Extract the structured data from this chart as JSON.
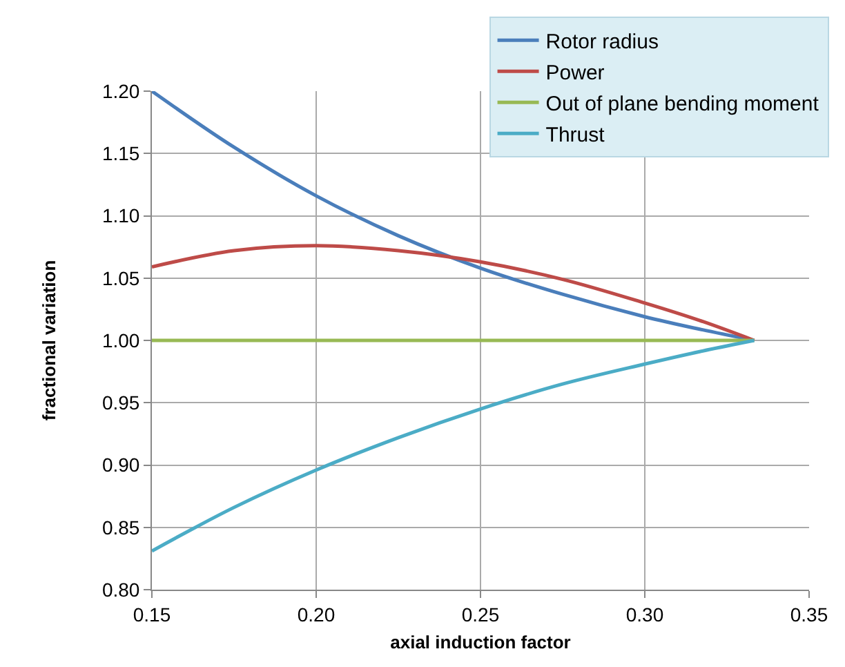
{
  "chart_data": {
    "type": "line",
    "xlabel": "axial induction factor",
    "ylabel": "fractional variation",
    "x": [
      0.15,
      0.175,
      0.2,
      0.225,
      0.25,
      0.275,
      0.3,
      0.3167,
      0.3333
    ],
    "series": [
      {
        "name": "Rotor radius",
        "color": "#4a7ebb",
        "values": [
          1.2,
          1.155,
          1.116,
          1.084,
          1.058,
          1.037,
          1.019,
          1.009,
          1.0
        ]
      },
      {
        "name": "Power",
        "color": "#be4b48",
        "values": [
          1.059,
          1.072,
          1.076,
          1.072,
          1.063,
          1.049,
          1.03,
          1.016,
          1.0
        ]
      },
      {
        "name": "Out of plane bending moment",
        "color": "#98b954",
        "values": [
          1.0,
          1.0,
          1.0,
          1.0,
          1.0,
          1.0,
          1.0,
          1.0,
          1.0
        ]
      },
      {
        "name": "Thrust",
        "color": "#4bacc6",
        "values": [
          0.831,
          0.866,
          0.896,
          0.922,
          0.945,
          0.965,
          0.981,
          0.991,
          1.0
        ]
      }
    ],
    "xlim": [
      0.15,
      0.35
    ],
    "xticks": [
      {
        "value": 0.15,
        "label": "0.15"
      },
      {
        "value": 0.2,
        "label": "0.20"
      },
      {
        "value": 0.25,
        "label": "0.25"
      },
      {
        "value": 0.3,
        "label": "0.30"
      },
      {
        "value": 0.35,
        "label": "0.35"
      }
    ],
    "ylim": [
      0.8,
      1.2
    ],
    "yticks": [
      {
        "value": 0.8,
        "label": "0.80"
      },
      {
        "value": 0.85,
        "label": "0.85"
      },
      {
        "value": 0.9,
        "label": "0.90"
      },
      {
        "value": 0.95,
        "label": "0.95"
      },
      {
        "value": 1.0,
        "label": "1.00"
      },
      {
        "value": 1.05,
        "label": "1.05"
      },
      {
        "value": 1.1,
        "label": "1.10"
      },
      {
        "value": 1.15,
        "label": "1.15"
      },
      {
        "value": 1.2,
        "label": "1.20"
      }
    ],
    "grid": true,
    "legend": "top right",
    "marker": "none",
    "line_style": "solid"
  }
}
